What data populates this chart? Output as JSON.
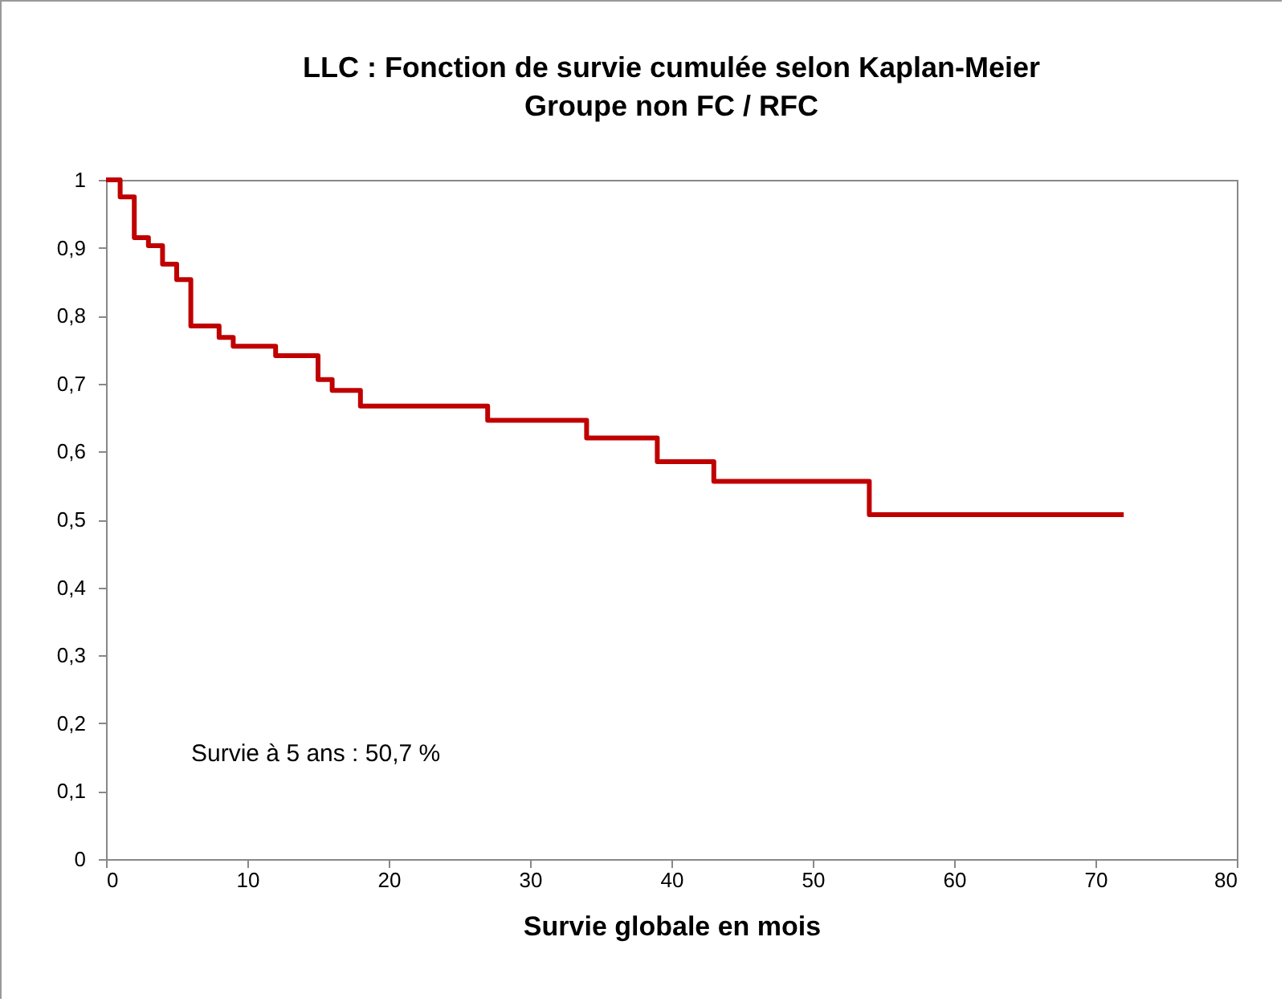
{
  "chart_data": {
    "type": "step",
    "title": [
      "LLC : Fonction de survie cumulée selon Kaplan-Meier",
      "Groupe non FC / RFC"
    ],
    "xlabel": "Survie globale en mois",
    "x": [
      0,
      1,
      2,
      3,
      4,
      5,
      6,
      8,
      9,
      12,
      15,
      16,
      18,
      27,
      34,
      39,
      43,
      54,
      72
    ],
    "series": [
      {
        "color": "#c00000",
        "values": [
          1,
          0.975,
          0.915,
          0.903,
          0.876,
          0.853,
          0.785,
          0.768,
          0.755,
          0.741,
          0.706,
          0.69,
          0.667,
          0.646,
          0.62,
          0.585,
          0.556,
          0.507,
          0.507
        ]
      }
    ],
    "xlim": [
      0,
      80
    ],
    "xticks": [
      0,
      10,
      20,
      30,
      40,
      50,
      60,
      70,
      80
    ],
    "ylim": [
      0,
      1
    ],
    "yticks": [
      0,
      {
        "value": 0.1,
        "label": "0,1"
      },
      {
        "value": 0.2,
        "label": "0,2"
      },
      {
        "value": 0.3,
        "label": "0,3"
      },
      {
        "value": 0.4,
        "label": "0,4"
      },
      {
        "value": 0.5,
        "label": "0,5"
      },
      {
        "value": 0.6,
        "label": "0,6"
      },
      {
        "value": 0.7,
        "label": "0,7"
      },
      {
        "value": 0.8,
        "label": "0,8"
      },
      {
        "value": 0.9,
        "label": "0,9"
      },
      1
    ],
    "grid": false,
    "marker": "none",
    "line_style": "solid",
    "annotations": [
      "Survie à 5 ans : 50,7 %"
    ]
  }
}
